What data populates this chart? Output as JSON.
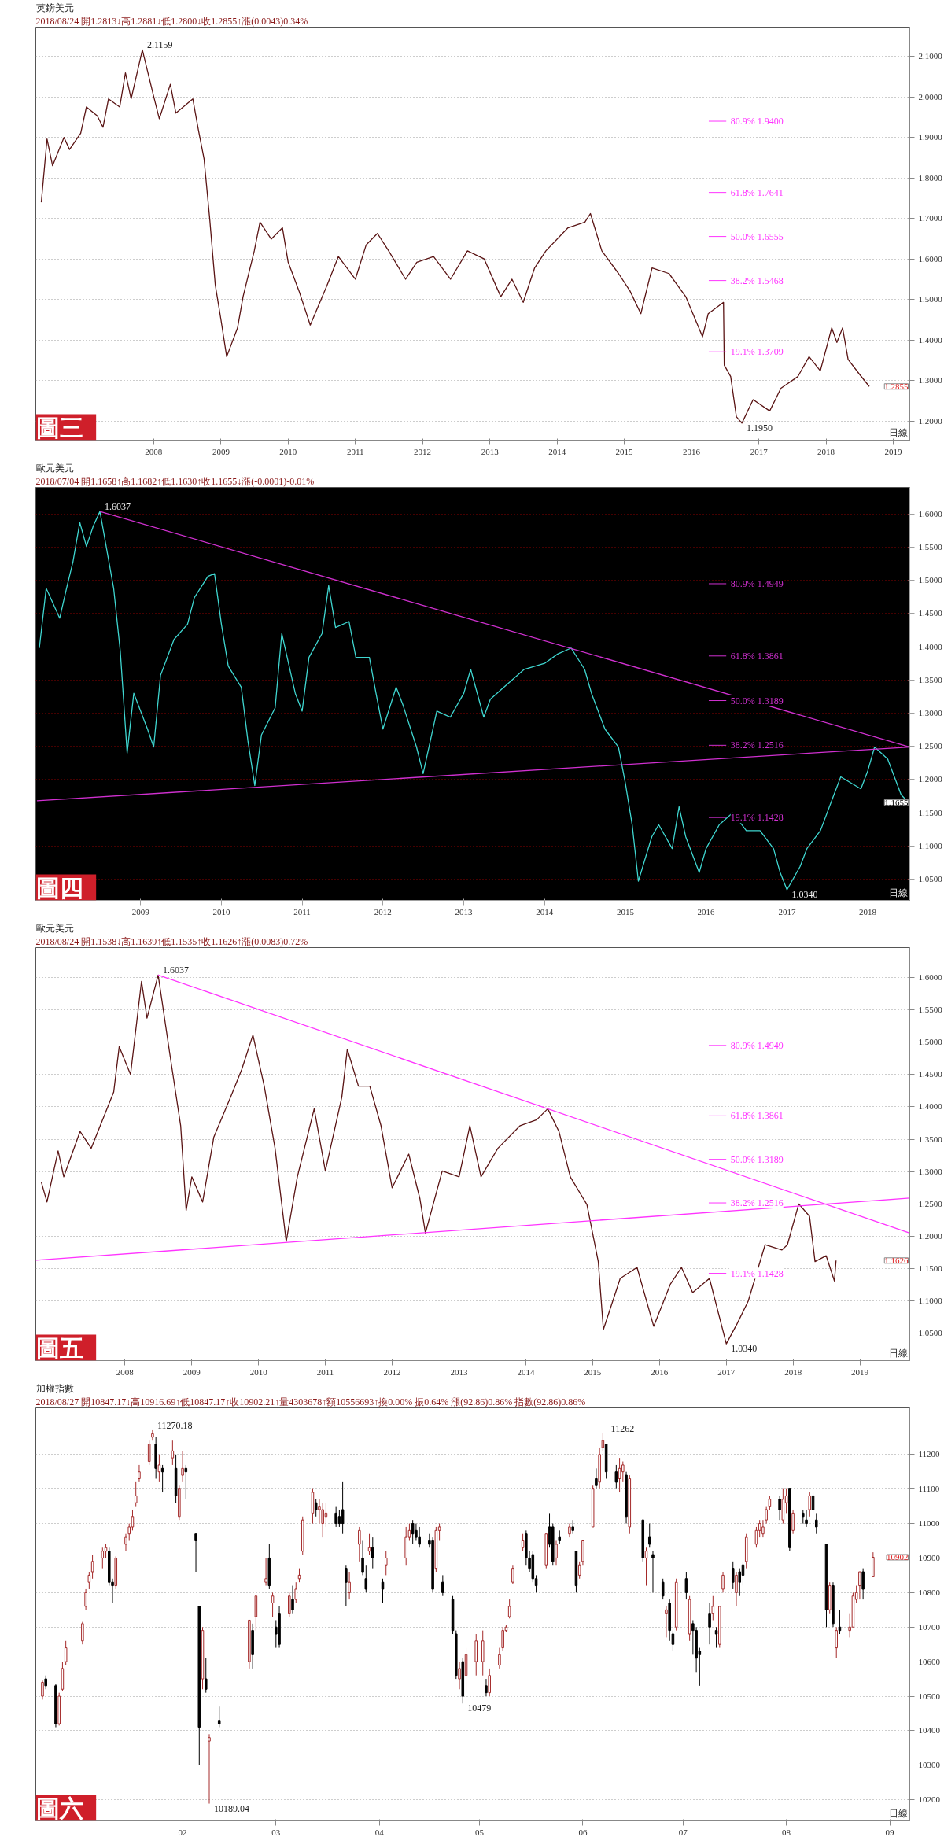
{
  "chart_data": [
    {
      "type": "line",
      "title": "英鎊美元",
      "subtitle": "2018/08/24 開1.2813↓高1.2881↓低1.2800↓收1.2855↑漲(0.0043)0.34%",
      "x": [
        "2006-05",
        "2006-06",
        "2006-07",
        "2006-09",
        "2006-10",
        "2006-12",
        "2007-01",
        "2007-03",
        "2007-04",
        "2007-05",
        "2007-07",
        "2007-08",
        "2007-09",
        "2007-11",
        "2008-01",
        "2008-02",
        "2008-04",
        "2008-05",
        "2008-08",
        "2008-09",
        "2008-10",
        "2008-11",
        "2008-12",
        "2009-01",
        "2009-02",
        "2009-04",
        "2009-05",
        "2009-07",
        "2009-08",
        "2009-10",
        "2009-12",
        "2010-01",
        "2010-03",
        "2010-05",
        "2010-08",
        "2010-10",
        "2011-01",
        "2011-03",
        "2011-05",
        "2011-07",
        "2011-10",
        "2011-12",
        "2012-03",
        "2012-06",
        "2012-09",
        "2012-12",
        "2013-03",
        "2013-05",
        "2013-07",
        "2013-09",
        "2013-11",
        "2014-03",
        "2014-06",
        "2014-07",
        "2014-09",
        "2014-12",
        "2015-02",
        "2015-04",
        "2015-06",
        "2015-09",
        "2015-12",
        "2016-03",
        "2016-04",
        "2016-06-23",
        "2016-06-27",
        "2016-08",
        "2016-09",
        "2016-10",
        "2016-12",
        "2017-03",
        "2017-05",
        "2017-08",
        "2017-10",
        "2017-12",
        "2018-02",
        "2018-03",
        "2018-04",
        "2018-05",
        "2018-07",
        "2018-08-24"
      ],
      "series": [
        {
          "color": "#5a1414",
          "values": [
            1.74,
            1.896,
            1.83,
            1.9,
            1.87,
            1.91,
            1.975,
            1.953,
            1.925,
            1.995,
            1.975,
            2.059,
            1.995,
            2.1159,
            2.002,
            1.946,
            2.031,
            1.96,
            1.995,
            1.917,
            1.847,
            1.698,
            1.536,
            1.45,
            1.359,
            1.43,
            1.507,
            1.62,
            1.691,
            1.649,
            1.677,
            1.592,
            1.521,
            1.437,
            1.536,
            1.606,
            1.55,
            1.635,
            1.663,
            1.62,
            1.55,
            1.592,
            1.606,
            1.55,
            1.62,
            1.6,
            1.507,
            1.55,
            1.493,
            1.578,
            1.62,
            1.677,
            1.691,
            1.712,
            1.62,
            1.564,
            1.521,
            1.465,
            1.578,
            1.564,
            1.507,
            1.408,
            1.465,
            1.493,
            1.338,
            1.31,
            1.211,
            1.195,
            1.253,
            1.225,
            1.281,
            1.31,
            1.359,
            1.324,
            1.43,
            1.394,
            1.43,
            1.352,
            1.316,
            1.2855
          ]
        }
      ],
      "xlim": [
        "2006-04",
        "2019-04"
      ],
      "xticks": [
        {
          "value": "2008",
          "label": "2008"
        },
        {
          "value": "2009",
          "label": "2009"
        },
        {
          "value": "2010",
          "label": "2010"
        },
        {
          "value": "2011",
          "label": "2011"
        },
        {
          "value": "2012",
          "label": "2012"
        },
        {
          "value": "2013",
          "label": "2013"
        },
        {
          "value": "2014",
          "label": "2014"
        },
        {
          "value": "2015",
          "label": "2015"
        },
        {
          "value": "2016",
          "label": "2016"
        },
        {
          "value": "2017",
          "label": "2017"
        },
        {
          "value": "2018",
          "label": "2018"
        },
        {
          "value": "2019",
          "label": "2019"
        }
      ],
      "ylim": [
        1.153,
        2.172
      ],
      "yticks": [
        {
          "value": 1.2,
          "label": "1.2000"
        },
        {
          "value": 1.3,
          "label": "1.3000"
        },
        {
          "value": 1.4,
          "label": "1.4000"
        },
        {
          "value": 1.5,
          "label": "1.5000"
        },
        {
          "value": 1.6,
          "label": "1.6000"
        },
        {
          "value": 1.7,
          "label": "1.7000"
        },
        {
          "value": 1.8,
          "label": "1.8000"
        },
        {
          "value": 1.9,
          "label": "1.9000"
        },
        {
          "value": 2.0,
          "label": "2.0000"
        },
        {
          "value": 2.1,
          "label": "2.1000"
        }
      ],
      "grid": "y",
      "annotations": [
        "圖三",
        "日線",
        {
          "text": "2.1159",
          "x": "2007-11",
          "y": 2.1159
        },
        {
          "text": "1.1950",
          "x": "2016-10",
          "y": 1.195
        },
        "1.2855"
      ],
      "ref_lines": [
        {
          "axis": "y",
          "value": 1.94,
          "label": "80.9% 1.9400"
        },
        {
          "axis": "y",
          "value": 1.7641,
          "label": "61.8% 1.7641"
        },
        {
          "axis": "y",
          "value": 1.6555,
          "label": "50.0% 1.6555"
        },
        {
          "axis": "y",
          "value": 1.5468,
          "label": "38.2% 1.5468"
        },
        {
          "axis": "y",
          "value": 1.3709,
          "label": "19.1% 1.3709"
        }
      ]
    },
    {
      "type": "line",
      "title": "歐元美元",
      "subtitle": "2018/07/04 開1.1658↑高1.1682↑低1.1630↑收1.1655↓漲(-0.0001)-0.01%",
      "x": [
        "2007-10",
        "2007-11",
        "2008-01",
        "2008-02",
        "2008-03",
        "2008-04",
        "2008-05",
        "2008-06",
        "2008-07",
        "2008-09",
        "2008-10",
        "2008-11",
        "2008-12",
        "2009-02",
        "2009-03",
        "2009-04",
        "2009-06",
        "2009-08",
        "2009-09",
        "2009-11",
        "2009-12",
        "2010-01",
        "2010-02",
        "2010-04",
        "2010-05",
        "2010-06",
        "2010-07",
        "2010-09",
        "2010-10",
        "2010-12",
        "2011-01",
        "2011-02",
        "2011-04",
        "2011-05",
        "2011-06",
        "2011-08",
        "2011-09",
        "2011-11",
        "2011-12",
        "2012-01",
        "2012-03",
        "2012-04",
        "2012-06",
        "2012-07",
        "2012-09",
        "2012-11",
        "2013-01",
        "2013-02",
        "2013-04",
        "2013-05",
        "2013-07",
        "2013-10",
        "2014-01",
        "2014-03",
        "2014-05",
        "2014-07",
        "2014-08",
        "2014-10",
        "2014-12",
        "2015-01",
        "2015-02",
        "2015-03",
        "2015-05",
        "2015-06",
        "2015-08",
        "2015-09",
        "2015-10",
        "2015-12",
        "2016-01",
        "2016-03",
        "2016-05",
        "2016-07",
        "2016-09",
        "2016-11",
        "2016-12",
        "2017-01",
        "2017-03",
        "2017-04",
        "2017-06",
        "2017-08",
        "2017-09",
        "2017-12",
        "2018-01",
        "2018-02",
        "2018-04",
        "2018-06",
        "2018-07-04"
      ],
      "series": [
        {
          "color": "#3fd6d0",
          "values": [
            1.398,
            1.488,
            1.443,
            1.488,
            1.528,
            1.587,
            1.551,
            1.582,
            1.6037,
            1.488,
            1.393,
            1.24,
            1.33,
            1.276,
            1.249,
            1.357,
            1.411,
            1.434,
            1.474,
            1.506,
            1.51,
            1.434,
            1.371,
            1.339,
            1.258,
            1.191,
            1.267,
            1.308,
            1.42,
            1.33,
            1.303,
            1.384,
            1.42,
            1.492,
            1.429,
            1.438,
            1.384,
            1.384,
            1.33,
            1.276,
            1.339,
            1.312,
            1.249,
            1.209,
            1.303,
            1.294,
            1.33,
            1.366,
            1.294,
            1.321,
            1.339,
            1.366,
            1.375,
            1.389,
            1.398,
            1.366,
            1.33,
            1.276,
            1.249,
            1.195,
            1.132,
            1.047,
            1.114,
            1.132,
            1.096,
            1.159,
            1.114,
            1.06,
            1.096,
            1.132,
            1.15,
            1.123,
            1.123,
            1.096,
            1.06,
            1.034,
            1.069,
            1.096,
            1.123,
            1.177,
            1.204,
            1.186,
            1.213,
            1.249,
            1.231,
            1.177,
            1.1655
          ]
        },
        {
          "type": "line",
          "color": "#d030d0",
          "x": [
            "2008-07",
            "2018-07-10"
          ],
          "values": [
            1.6037,
            1.249
          ]
        },
        {
          "type": "line",
          "color": "#d030d0",
          "x": [
            "2007-09-20",
            "2018-07-10"
          ],
          "values": [
            1.168,
            1.249
          ]
        }
      ],
      "xlim": [
        "2007-09-15",
        "2018-07-10"
      ],
      "xticks": [
        {
          "value": "2009",
          "label": "2009"
        },
        {
          "value": "2010",
          "label": "2010"
        },
        {
          "value": "2011",
          "label": "2011"
        },
        {
          "value": "2012",
          "label": "2012"
        },
        {
          "value": "2013",
          "label": "2013"
        },
        {
          "value": "2014",
          "label": "2014"
        },
        {
          "value": "2015",
          "label": "2015"
        },
        {
          "value": "2016",
          "label": "2016"
        },
        {
          "value": "2017",
          "label": "2017"
        },
        {
          "value": "2018",
          "label": "2018"
        }
      ],
      "ylim": [
        1.018,
        1.64
      ],
      "yticks": [
        {
          "value": 1.05,
          "label": "1.0500"
        },
        {
          "value": 1.1,
          "label": "1.1000"
        },
        {
          "value": 1.15,
          "label": "1.1500"
        },
        {
          "value": 1.2,
          "label": "1.2000"
        },
        {
          "value": 1.25,
          "label": "1.2500"
        },
        {
          "value": 1.3,
          "label": "1.3000"
        },
        {
          "value": 1.35,
          "label": "1.3500"
        },
        {
          "value": 1.4,
          "label": "1.4000"
        },
        {
          "value": 1.45,
          "label": "1.4500"
        },
        {
          "value": 1.5,
          "label": "1.5000"
        },
        {
          "value": 1.55,
          "label": "1.5500"
        },
        {
          "value": 1.6,
          "label": "1.6000"
        }
      ],
      "grid": "y",
      "annotations": [
        "圖四",
        "日線",
        {
          "text": "1.6037",
          "x": "2008-07",
          "y": 1.6037
        },
        {
          "text": "1.0340",
          "x": "2017-01",
          "y": 1.034
        },
        "1.1655"
      ],
      "ref_lines": [
        {
          "axis": "y",
          "value": 1.4949,
          "label": "80.9% 1.4949"
        },
        {
          "axis": "y",
          "value": 1.3861,
          "label": "61.8% 1.3861"
        },
        {
          "axis": "y",
          "value": 1.3189,
          "label": "50.0% 1.3189"
        },
        {
          "axis": "y",
          "value": 1.2516,
          "label": "38.2% 1.2516"
        },
        {
          "axis": "y",
          "value": 1.1428,
          "label": "19.1% 1.1428"
        }
      ]
    },
    {
      "type": "line",
      "title": "歐元美元",
      "subtitle": "2018/08/24 開1.1538↓高1.1639↑低1.1535↑收1.1626↑漲(0.0083)0.72%",
      "x": [
        "2006-10",
        "2006-11",
        "2007-01",
        "2007-02",
        "2007-05",
        "2007-07",
        "2007-09",
        "2007-11",
        "2007-12",
        "2008-02",
        "2008-04",
        "2008-05",
        "2008-07",
        "2008-09",
        "2008-11",
        "2008-12",
        "2009-01",
        "2009-03",
        "2009-05",
        "2009-08",
        "2009-10",
        "2009-12",
        "2010-02",
        "2010-04",
        "2010-06",
        "2010-08",
        "2010-11",
        "2011-01",
        "2011-04",
        "2011-05",
        "2011-07",
        "2011-09",
        "2011-11",
        "2012-01",
        "2012-04",
        "2012-06",
        "2012-07",
        "2012-10",
        "2013-01",
        "2013-03",
        "2013-05",
        "2013-08",
        "2013-12",
        "2014-03",
        "2014-05",
        "2014-07",
        "2014-09",
        "2014-12",
        "2015-02",
        "2015-03",
        "2015-06",
        "2015-09",
        "2015-12",
        "2016-03",
        "2016-05",
        "2016-07",
        "2016-10",
        "2017-01",
        "2017-03",
        "2017-05",
        "2017-08",
        "2017-11",
        "2017-12",
        "2018-02",
        "2018-04",
        "2018-05",
        "2018-07",
        "2018-08-15",
        "2018-08-24"
      ],
      "series": [
        {
          "color": "#5a1414",
          "values": [
            1.284,
            1.253,
            1.332,
            1.292,
            1.362,
            1.336,
            1.38,
            1.423,
            1.493,
            1.45,
            1.594,
            1.537,
            1.6037,
            1.485,
            1.371,
            1.24,
            1.292,
            1.253,
            1.353,
            1.415,
            1.458,
            1.511,
            1.432,
            1.336,
            1.192,
            1.292,
            1.397,
            1.301,
            1.415,
            1.489,
            1.432,
            1.432,
            1.371,
            1.275,
            1.327,
            1.258,
            1.205,
            1.301,
            1.292,
            1.371,
            1.292,
            1.336,
            1.371,
            1.38,
            1.397,
            1.362,
            1.292,
            1.249,
            1.161,
            1.056,
            1.135,
            1.152,
            1.061,
            1.126,
            1.152,
            1.113,
            1.135,
            1.034,
            1.065,
            1.1,
            1.187,
            1.179,
            1.187,
            1.25,
            1.231,
            1.161,
            1.17,
            1.131,
            1.1626
          ]
        },
        {
          "type": "line",
          "color": "#ff33ff",
          "x": [
            "2008-07",
            "2019-10"
          ],
          "values": [
            1.6037,
            1.205
          ]
        },
        {
          "type": "line",
          "color": "#ff33ff",
          "x": [
            "2006-09",
            "2019-10"
          ],
          "values": [
            1.163,
            1.259
          ]
        }
      ],
      "xlim": [
        "2006-09",
        "2019-10"
      ],
      "xticks": [
        {
          "value": "2008",
          "label": "2008"
        },
        {
          "value": "2009",
          "label": "2009"
        },
        {
          "value": "2010",
          "label": "2010"
        },
        {
          "value": "2011",
          "label": "2011"
        },
        {
          "value": "2012",
          "label": "2012"
        },
        {
          "value": "2013",
          "label": "2013"
        },
        {
          "value": "2014",
          "label": "2014"
        },
        {
          "value": "2015",
          "label": "2015"
        },
        {
          "value": "2016",
          "label": "2016"
        },
        {
          "value": "2017",
          "label": "2017"
        },
        {
          "value": "2018",
          "label": "2018"
        },
        {
          "value": "2019",
          "label": "2019"
        }
      ],
      "ylim": [
        1.008,
        1.646
      ],
      "yticks": [
        {
          "value": 1.05,
          "label": "1.0500"
        },
        {
          "value": 1.1,
          "label": "1.1000"
        },
        {
          "value": 1.15,
          "label": "1.1500"
        },
        {
          "value": 1.2,
          "label": "1.2000"
        },
        {
          "value": 1.25,
          "label": "1.2500"
        },
        {
          "value": 1.3,
          "label": "1.3000"
        },
        {
          "value": 1.35,
          "label": "1.3500"
        },
        {
          "value": 1.4,
          "label": "1.4000"
        },
        {
          "value": 1.45,
          "label": "1.4500"
        },
        {
          "value": 1.5,
          "label": "1.5000"
        },
        {
          "value": 1.55,
          "label": "1.5500"
        },
        {
          "value": 1.6,
          "label": "1.6000"
        }
      ],
      "grid": "y",
      "annotations": [
        "圖五",
        "日線",
        {
          "text": "1.6037",
          "x": "2008-07",
          "y": 1.6037
        },
        {
          "text": "1.0340",
          "x": "2017-01",
          "y": 1.034
        },
        "1.1626"
      ],
      "ref_lines": [
        {
          "axis": "y",
          "value": 1.4949,
          "label": "80.9% 1.4949"
        },
        {
          "axis": "y",
          "value": 1.3861,
          "label": "61.8% 1.3861"
        },
        {
          "axis": "y",
          "value": 1.3189,
          "label": "50.0% 1.3189"
        },
        {
          "axis": "y",
          "value": 1.2516,
          "label": "38.2% 1.2516"
        },
        {
          "axis": "y",
          "value": 1.1428,
          "label": "19.1% 1.1428"
        }
      ]
    },
    {
      "type": "candlestick",
      "title": "加權指數",
      "subtitle": "2018/08/27 開10847.17↓高10916.69↑低10847.17↑收10902.21↑量4303678↑額10556693↑換0.00% 振0.64% 漲(92.86)0.86% 指數(92.86)0.86%",
      "x": [
        "2017-12-21",
        "2017-12-22",
        "2017-12-25",
        "2017-12-26",
        "2017-12-27",
        "2017-12-28",
        "2018-01-02",
        "2018-01-03",
        "2018-01-04",
        "2018-01-05",
        "2018-01-08",
        "2018-01-09",
        "2018-01-10",
        "2018-01-11",
        "2018-01-12",
        "2018-01-15",
        "2018-01-16",
        "2018-01-17",
        "2018-01-18",
        "2018-01-19",
        "2018-01-22",
        "2018-01-23",
        "2018-01-24",
        "2018-01-25",
        "2018-01-26",
        "2018-01-29",
        "2018-01-30",
        "2018-01-31",
        "2018-02-01",
        "2018-02-02",
        "2018-02-05",
        "2018-02-06",
        "2018-02-07",
        "2018-02-08",
        "2018-02-09",
        "2018-02-12",
        "2018-02-21",
        "2018-02-22",
        "2018-02-23",
        "2018-02-26",
        "2018-02-27",
        "2018-02-28",
        "2018-03-01",
        "2018-03-02",
        "2018-03-05",
        "2018-03-06",
        "2018-03-07",
        "2018-03-08",
        "2018-03-09",
        "2018-03-12",
        "2018-03-13",
        "2018-03-14",
        "2018-03-15",
        "2018-03-16",
        "2018-03-19",
        "2018-03-20",
        "2018-03-21",
        "2018-03-22",
        "2018-03-23",
        "2018-03-26",
        "2018-03-27",
        "2018-03-28",
        "2018-03-29",
        "2018-03-30",
        "2018-04-02",
        "2018-04-03",
        "2018-04-09",
        "2018-04-10",
        "2018-04-11",
        "2018-04-12",
        "2018-04-13",
        "2018-04-16",
        "2018-04-17",
        "2018-04-18",
        "2018-04-19",
        "2018-04-20",
        "2018-04-23",
        "2018-04-24",
        "2018-04-25",
        "2018-04-26",
        "2018-04-27",
        "2018-04-30",
        "2018-05-02",
        "2018-05-03",
        "2018-05-04",
        "2018-05-07",
        "2018-05-08",
        "2018-05-09",
        "2018-05-10",
        "2018-05-11",
        "2018-05-14",
        "2018-05-15",
        "2018-05-16",
        "2018-05-17",
        "2018-05-18",
        "2018-05-21",
        "2018-05-22",
        "2018-05-23",
        "2018-05-24",
        "2018-05-25",
        "2018-05-28",
        "2018-05-29",
        "2018-05-30",
        "2018-05-31",
        "2018-06-01",
        "2018-06-04",
        "2018-06-05",
        "2018-06-06",
        "2018-06-07",
        "2018-06-08",
        "2018-06-11",
        "2018-06-12",
        "2018-06-13",
        "2018-06-14",
        "2018-06-15",
        "2018-06-19",
        "2018-06-20",
        "2018-06-21",
        "2018-06-22",
        "2018-06-25",
        "2018-06-26",
        "2018-06-27",
        "2018-06-28",
        "2018-06-29",
        "2018-07-02",
        "2018-07-03",
        "2018-07-04",
        "2018-07-05",
        "2018-07-06",
        "2018-07-09",
        "2018-07-10",
        "2018-07-11",
        "2018-07-12",
        "2018-07-13",
        "2018-07-16",
        "2018-07-17",
        "2018-07-18",
        "2018-07-19",
        "2018-07-20",
        "2018-07-23",
        "2018-07-24",
        "2018-07-25",
        "2018-07-26",
        "2018-07-27",
        "2018-07-30",
        "2018-07-31",
        "2018-08-01",
        "2018-08-02",
        "2018-08-03",
        "2018-08-06",
        "2018-08-07",
        "2018-08-08",
        "2018-08-09",
        "2018-08-10",
        "2018-08-13",
        "2018-08-14",
        "2018-08-15",
        "2018-08-16",
        "2018-08-17",
        "2018-08-20",
        "2018-08-21",
        "2018-08-22",
        "2018-08-23",
        "2018-08-24",
        "2018-08-27"
      ],
      "ohlc": [
        [
          10500,
          10545,
          10490,
          10540
        ],
        [
          10550,
          10560,
          10520,
          10530
        ],
        [
          10530,
          10535,
          10410,
          10420
        ],
        [
          10420,
          10510,
          10415,
          10500
        ],
        [
          10520,
          10600,
          10515,
          10580
        ],
        [
          10600,
          10660,
          10590,
          10640
        ],
        [
          10660,
          10715,
          10650,
          10710
        ],
        [
          10760,
          10810,
          10750,
          10800
        ],
        [
          10830,
          10860,
          10810,
          10850
        ],
        [
          10860,
          10910,
          10840,
          10890
        ],
        [
          10900,
          10930,
          10870,
          10920
        ],
        [
          10920,
          10940,
          10900,
          10930
        ],
        [
          10920,
          10930,
          10820,
          10830
        ],
        [
          10830,
          10840,
          10770,
          10820
        ],
        [
          10820,
          10905,
          10810,
          10900
        ],
        [
          10940,
          10970,
          10920,
          10960
        ],
        [
          10970,
          11000,
          10950,
          10990
        ],
        [
          10990,
          11040,
          10980,
          11020
        ],
        [
          11060,
          11120,
          11050,
          11080
        ],
        [
          11130,
          11170,
          11120,
          11150
        ],
        [
          11180,
          11240,
          11170,
          11230
        ],
        [
          11250,
          11270.18,
          11240,
          11260
        ],
        [
          11230,
          11250,
          11130,
          11160
        ],
        [
          11150,
          11200,
          11120,
          11170
        ],
        [
          11160,
          11170,
          11090,
          11150
        ],
        [
          11190,
          11240,
          11170,
          11210
        ],
        [
          11160,
          11200,
          11060,
          11080
        ],
        [
          11020,
          11110,
          11010,
          11100
        ],
        [
          11140,
          11210,
          11120,
          11160
        ],
        [
          11160,
          11170,
          11070,
          11150
        ],
        [
          10970,
          10970,
          10860,
          10950
        ],
        [
          10760,
          10760,
          10300,
          10410
        ],
        [
          10550,
          10700,
          10520,
          10690
        ],
        [
          10550,
          10610,
          10510,
          10520
        ],
        [
          10370,
          10390,
          10189.04,
          10380
        ],
        [
          10430,
          10470,
          10410,
          10420
        ],
        [
          10600,
          10720,
          10580,
          10720
        ],
        [
          10690,
          10710,
          10580,
          10620
        ],
        [
          10730,
          10790,
          10690,
          10790
        ],
        [
          10830,
          10900,
          10820,
          10840
        ],
        [
          10900,
          10940,
          10810,
          10820
        ],
        [
          10770,
          10800,
          10730,
          10790
        ],
        [
          10700,
          10720,
          10640,
          10680
        ],
        [
          10740,
          10760,
          10640,
          10650
        ],
        [
          10740,
          10800,
          10730,
          10790
        ],
        [
          10780,
          10820,
          10740,
          10750
        ],
        [
          10780,
          10830,
          10770,
          10810
        ],
        [
          10840,
          10870,
          10830,
          10850
        ],
        [
          10920,
          11020,
          10910,
          11010
        ],
        [
          11030,
          11100,
          11000,
          11090
        ],
        [
          11060,
          11070,
          11020,
          11040
        ],
        [
          11040,
          11070,
          11000,
          11050
        ],
        [
          11000,
          11060,
          10960,
          11040
        ],
        [
          11020,
          11060,
          10990,
          11030
        ],
        [
          11030,
          11050,
          10990,
          11000
        ],
        [
          11020,
          11040,
          10990,
          11000
        ],
        [
          11040,
          11120,
          10970,
          11000
        ],
        [
          10870,
          10880,
          10760,
          10830
        ],
        [
          10800,
          10860,
          10780,
          10830
        ],
        [
          10940,
          10990,
          10890,
          10980
        ],
        [
          10900,
          10950,
          10850,
          10860
        ],
        [
          10840,
          10880,
          10800,
          10810
        ],
        [
          10920,
          10970,
          10910,
          10930
        ],
        [
          10930,
          10960,
          10870,
          10900
        ],
        [
          10830,
          10840,
          10770,
          10810
        ],
        [
          10880,
          10920,
          10850,
          10900
        ],
        [
          10900,
          10990,
          10880,
          10960
        ],
        [
          10960,
          11000,
          10950,
          10980
        ],
        [
          11000,
          11010,
          10940,
          10970
        ],
        [
          10980,
          11000,
          10950,
          10960
        ],
        [
          10960,
          10990,
          10930,
          10940
        ],
        [
          10950,
          10970,
          10930,
          10940
        ],
        [
          10950,
          10960,
          10800,
          10810
        ],
        [
          10870,
          10990,
          10860,
          10980
        ],
        [
          10980,
          11000,
          10950,
          10990
        ],
        [
          10830,
          10850,
          10790,
          10800
        ],
        [
          10780,
          10790,
          10680,
          10690
        ],
        [
          10680,
          10690,
          10550,
          10560
        ],
        [
          10550,
          10600,
          10520,
          10580
        ],
        [
          10600,
          10610,
          10479,
          10500
        ],
        [
          10560,
          10640,
          10510,
          10620
        ],
        [
          10600,
          10680,
          10560,
          10660
        ],
        [
          10600,
          10690,
          10560,
          10660
        ],
        [
          10530,
          10550,
          10500,
          10510
        ],
        [
          10510,
          10580,
          10500,
          10560
        ],
        [
          10590,
          10640,
          10580,
          10620
        ],
        [
          10640,
          10700,
          10630,
          10690
        ],
        [
          10690,
          10705,
          10685,
          10700
        ],
        [
          10730,
          10780,
          10725,
          10760
        ],
        [
          10830,
          10880,
          10825,
          10870
        ],
        [
          10930,
          10970,
          10920,
          10950
        ],
        [
          10970,
          10980,
          10880,
          10900
        ],
        [
          10900,
          10920,
          10860,
          10870
        ],
        [
          10910,
          10920,
          10830,
          10840
        ],
        [
          10840,
          10850,
          10800,
          10820
        ],
        [
          10880,
          10970,
          10870,
          10970
        ],
        [
          10990,
          11030,
          10930,
          10940
        ],
        [
          10990,
          11000,
          10880,
          10890
        ],
        [
          10900,
          10950,
          10880,
          10940
        ],
        [
          10960,
          10980,
          10940,
          10950
        ],
        [
          10970,
          11000,
          10960,
          10990
        ],
        [
          10990,
          11010,
          10970,
          10980
        ],
        [
          10920,
          10920,
          10800,
          10820
        ],
        [
          10850,
          10890,
          10840,
          10880
        ],
        [
          10890,
          10950,
          10880,
          10950
        ],
        [
          10990,
          11110,
          10990,
          11100
        ],
        [
          11130,
          11160,
          11100,
          11110
        ],
        [
          11120,
          11220,
          11100,
          11200
        ],
        [
          11220,
          11262,
          11210,
          11240
        ],
        [
          11230,
          11230,
          11130,
          11150
        ],
        [
          11150,
          11170,
          11100,
          11120
        ],
        [
          11130,
          11190,
          11090,
          11160
        ],
        [
          11150,
          11180,
          11120,
          11170
        ],
        [
          11140,
          11150,
          11000,
          11020
        ],
        [
          10990,
          11140,
          10970,
          11130
        ],
        [
          11010,
          11010,
          10890,
          10900
        ],
        [
          10900,
          10930,
          10820,
          10920
        ],
        [
          10960,
          11000,
          10930,
          10940
        ],
        [
          10910,
          10920,
          10800,
          10900
        ],
        [
          10830,
          10840,
          10780,
          10790
        ],
        [
          10740,
          10760,
          10670,
          10750
        ],
        [
          10770,
          10780,
          10660,
          10690
        ],
        [
          10680,
          10690,
          10630,
          10650
        ],
        [
          10700,
          10840,
          10690,
          10830
        ],
        [
          10840,
          10860,
          10780,
          10800
        ],
        [
          10680,
          10790,
          10660,
          10780
        ],
        [
          10710,
          10720,
          10620,
          10690
        ],
        [
          10690,
          10700,
          10570,
          10610
        ],
        [
          10630,
          10640,
          10530,
          10620
        ],
        [
          10740,
          10770,
          10650,
          10700
        ],
        [
          10740,
          10790,
          10720,
          10760
        ],
        [
          10690,
          10700,
          10640,
          10680
        ],
        [
          10650,
          10760,
          10640,
          10760
        ],
        [
          10810,
          10860,
          10800,
          10850
        ],
        [
          10870,
          10890,
          10810,
          10830
        ],
        [
          10800,
          10860,
          10760,
          10850
        ],
        [
          10860,
          10870,
          10790,
          10830
        ],
        [
          10880,
          10890,
          10820,
          10850
        ],
        [
          10890,
          10970,
          10870,
          10960
        ],
        [
          10940,
          10990,
          10930,
          10980
        ],
        [
          10980,
          11010,
          10960,
          11000
        ],
        [
          10970,
          11010,
          10960,
          10990
        ],
        [
          11010,
          11050,
          11000,
          11040
        ],
        [
          11050,
          11080,
          11040,
          11070
        ],
        [
          11070,
          11080,
          11010,
          11040
        ],
        [
          11010,
          11100,
          11000,
          11070
        ],
        [
          11060,
          11100,
          11030,
          11080
        ],
        [
          11100,
          11100,
          10920,
          10930
        ],
        [
          10980,
          11040,
          10970,
          11030
        ],
        [
          11030,
          11040,
          11000,
          11020
        ],
        [
          11010,
          11040,
          10990,
          11000
        ],
        [
          11040,
          11090,
          11020,
          11080
        ],
        [
          11080,
          11090,
          11030,
          11040
        ],
        [
          11010,
          11030,
          10970,
          10990
        ],
        [
          10940,
          10940,
          10700,
          10750
        ],
        [
          10750,
          10830,
          10740,
          10820
        ],
        [
          10820,
          10830,
          10700,
          10710
        ],
        [
          10640,
          10700,
          10610,
          10690
        ],
        [
          10700,
          10750,
          10680,
          10690
        ],
        [
          10690,
          10740,
          10670,
          10700
        ],
        [
          10700,
          10800,
          10700,
          10790
        ],
        [
          10780,
          10820,
          10770,
          10800
        ],
        [
          10820,
          10860,
          10780,
          10860
        ],
        [
          10860,
          10870,
          10780,
          10810
        ],
        [
          10847.17,
          10916.69,
          10847.17,
          10902.21
        ]
      ],
      "xlim": [
        "2017-12-19",
        "2018-09-07"
      ],
      "xticks": [
        {
          "value": "2018-02-01",
          "label": "02"
        },
        {
          "value": "2018-03-01",
          "label": "03"
        },
        {
          "value": "2018-04-01",
          "label": "04"
        },
        {
          "value": "2018-05-01",
          "label": "05"
        },
        {
          "value": "2018-06-01",
          "label": "06"
        },
        {
          "value": "2018-07-01",
          "label": "07"
        },
        {
          "value": "2018-08-01",
          "label": "08"
        },
        {
          "value": "2018-09-01",
          "label": "09"
        }
      ],
      "ylim": [
        10139,
        11335
      ],
      "yticks": [
        10200,
        10300,
        10400,
        10500,
        10600,
        10700,
        10800,
        10900,
        11000,
        11100,
        11200
      ],
      "grid": "y",
      "annotations": [
        "圖六",
        "日線",
        {
          "text": "11270.18",
          "x": "2018-01-23",
          "y": 11270.18
        },
        {
          "text": "10189.04",
          "x": "2018-02-09",
          "y": 10189.04
        },
        {
          "text": "11262",
          "x": "2018-06-08",
          "y": 11262
        },
        {
          "text": "10479",
          "x": "2018-04-26",
          "y": 10479
        },
        "10902"
      ]
    }
  ]
}
